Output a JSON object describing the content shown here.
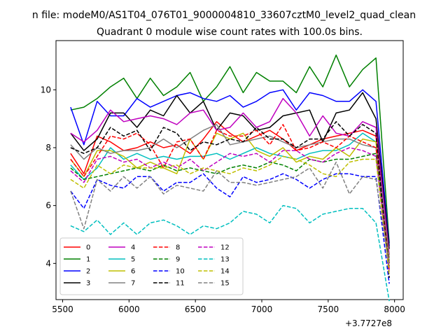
{
  "chart_data": {
    "type": "line",
    "suptitle": "n file: modeM0/AS1T04_076T01_9000004810_33607cztM0_level2_quad_clean",
    "title": "Quadrant 0 module wise count rates with 100.0s bins.",
    "xlabel": "",
    "ylabel": "",
    "x_offset_label": "+3.7727e8",
    "xlim": [
      5450,
      8065
    ],
    "ylim": [
      2.75,
      11.7
    ],
    "xticks": [
      5500,
      6000,
      6500,
      7000,
      7500,
      8000
    ],
    "xtick_labels": [
      "5500",
      "6000",
      "6500",
      "7000",
      "7500",
      "8000"
    ],
    "yticks": [
      4,
      6,
      8,
      10
    ],
    "ytick_labels": [
      "4",
      "6",
      "8",
      "10"
    ],
    "grid": false,
    "legend_position": "lower-left",
    "legend_columns": 4,
    "x": [
      5560,
      5660,
      5760,
      5860,
      5960,
      6060,
      6160,
      6260,
      6360,
      6460,
      6560,
      6660,
      6760,
      6860,
      6960,
      7060,
      7160,
      7260,
      7360,
      7460,
      7560,
      7660,
      7760,
      7860,
      7960
    ],
    "series": [
      {
        "name": "0",
        "color": "#ff0000",
        "dash": "solid",
        "values": [
          7.8,
          7.1,
          8.4,
          8.2,
          7.9,
          8.0,
          8.2,
          8.0,
          8.1,
          7.8,
          8.3,
          8.9,
          8.5,
          8.2,
          8.4,
          8.6,
          8.3,
          7.9,
          8.1,
          8.3,
          8.4,
          8.5,
          8.6,
          8.4,
          3.8
        ]
      },
      {
        "name": "1",
        "color": "#008000",
        "dash": "solid",
        "values": [
          9.3,
          9.4,
          9.7,
          10.1,
          10.4,
          9.7,
          10.4,
          9.8,
          10.1,
          10.6,
          9.6,
          10.1,
          10.8,
          9.9,
          10.6,
          10.3,
          10.3,
          9.9,
          10.8,
          10.1,
          11.2,
          10.1,
          10.7,
          11.1,
          4.7
        ]
      },
      {
        "name": "2",
        "color": "#0000ff",
        "dash": "solid",
        "values": [
          9.4,
          8.1,
          9.6,
          9.1,
          9.1,
          9.7,
          9.4,
          9.6,
          9.8,
          9.9,
          9.7,
          9.6,
          9.8,
          9.4,
          9.6,
          9.9,
          10.0,
          9.3,
          9.9,
          9.8,
          9.6,
          9.6,
          10.0,
          9.6,
          4.6
        ]
      },
      {
        "name": "3",
        "color": "#000000",
        "dash": "solid",
        "values": [
          8.5,
          7.9,
          8.3,
          9.2,
          9.2,
          8.7,
          9.3,
          9.1,
          9.8,
          9.2,
          9.6,
          8.6,
          9.2,
          9.1,
          8.6,
          8.7,
          9.1,
          9.2,
          9.3,
          8.2,
          9.2,
          9.3,
          9.9,
          9.0,
          4.5
        ]
      },
      {
        "name": "4",
        "color": "#bf00bf",
        "dash": "solid",
        "values": [
          8.5,
          8.2,
          8.6,
          9.3,
          8.9,
          9.0,
          9.1,
          9.0,
          8.8,
          9.2,
          9.3,
          8.6,
          8.7,
          9.2,
          8.7,
          8.9,
          9.7,
          9.2,
          8.4,
          9.1,
          8.5,
          8.4,
          8.9,
          8.7,
          4.3
        ]
      },
      {
        "name": "5",
        "color": "#00bfbf",
        "dash": "solid",
        "values": [
          7.4,
          6.9,
          7.3,
          8.0,
          7.6,
          7.8,
          7.6,
          7.7,
          7.6,
          7.7,
          7.7,
          7.8,
          7.6,
          7.8,
          8.0,
          7.8,
          7.7,
          7.6,
          7.8,
          7.9,
          7.9,
          8.1,
          8.5,
          8.2,
          4.1
        ]
      },
      {
        "name": "6",
        "color": "#bfbf00",
        "dash": "solid",
        "values": [
          7.6,
          7.0,
          7.9,
          7.9,
          7.7,
          7.3,
          7.5,
          7.3,
          7.1,
          8.3,
          7.6,
          8.5,
          8.3,
          8.5,
          7.9,
          7.7,
          8.0,
          7.5,
          7.7,
          7.6,
          8.0,
          7.7,
          8.3,
          8.2,
          4.0
        ]
      },
      {
        "name": "7",
        "color": "#808080",
        "dash": "solid",
        "values": [
          8.1,
          7.6,
          8.0,
          7.8,
          7.9,
          7.9,
          8.0,
          8.3,
          8.0,
          8.3,
          8.6,
          8.8,
          8.1,
          8.2,
          8.3,
          8.4,
          8.2,
          8.0,
          8.1,
          8.2,
          8.3,
          8.3,
          8.1,
          8.0,
          4.2
        ]
      },
      {
        "name": "8",
        "color": "#ff0000",
        "dash": "dashed",
        "values": [
          7.6,
          7.0,
          7.7,
          8.4,
          8.3,
          8.5,
          8.1,
          7.3,
          8.2,
          8.3,
          7.6,
          8.6,
          8.4,
          8.4,
          8.6,
          8.1,
          8.8,
          7.9,
          8.0,
          8.2,
          8.0,
          8.4,
          8.2,
          8.0,
          4.0
        ]
      },
      {
        "name": "9",
        "color": "#008000",
        "dash": "dashed",
        "values": [
          7.3,
          6.9,
          7.0,
          7.1,
          7.2,
          7.3,
          7.2,
          7.4,
          7.2,
          7.3,
          7.2,
          7.1,
          7.3,
          7.4,
          7.3,
          7.5,
          7.4,
          7.2,
          7.6,
          7.5,
          7.6,
          7.6,
          7.7,
          7.8,
          3.9
        ]
      },
      {
        "name": "10",
        "color": "#0000ff",
        "dash": "dashed",
        "values": [
          6.5,
          5.9,
          6.9,
          6.7,
          6.6,
          7.0,
          7.0,
          6.5,
          6.8,
          6.8,
          7.1,
          6.6,
          6.3,
          7.0,
          6.8,
          6.9,
          7.1,
          6.9,
          6.6,
          6.9,
          7.1,
          7.1,
          7.0,
          7.0,
          3.3
        ]
      },
      {
        "name": "11",
        "color": "#000000",
        "dash": "dashed",
        "values": [
          8.0,
          7.8,
          8.0,
          8.7,
          8.4,
          8.6,
          7.9,
          8.7,
          8.5,
          7.9,
          8.2,
          8.1,
          8.3,
          8.2,
          8.7,
          8.3,
          8.3,
          8.0,
          8.3,
          8.3,
          8.9,
          8.4,
          8.8,
          8.5,
          3.5
        ]
      },
      {
        "name": "12",
        "color": "#bf00bf",
        "dash": "dashed",
        "values": [
          7.2,
          6.8,
          7.6,
          7.7,
          7.5,
          7.6,
          7.3,
          7.5,
          7.3,
          7.6,
          7.2,
          7.5,
          7.8,
          7.7,
          7.8,
          7.5,
          7.9,
          7.9,
          7.6,
          7.5,
          7.8,
          8.0,
          7.9,
          7.7,
          3.7
        ]
      },
      {
        "name": "13",
        "color": "#00bfbf",
        "dash": "dashed",
        "values": [
          5.3,
          5.1,
          5.5,
          5.0,
          5.4,
          5.0,
          5.4,
          5.5,
          5.3,
          5.0,
          5.3,
          5.2,
          5.4,
          5.8,
          5.7,
          5.4,
          6.0,
          5.9,
          5.4,
          5.7,
          5.8,
          5.9,
          5.9,
          5.4,
          2.7
        ]
      },
      {
        "name": "14",
        "color": "#bfbf00",
        "dash": "dashed",
        "values": [
          6.9,
          6.6,
          7.4,
          7.1,
          7.4,
          7.3,
          7.3,
          7.3,
          7.4,
          7.1,
          7.3,
          7.2,
          7.1,
          7.3,
          7.2,
          7.4,
          7.7,
          7.6,
          7.4,
          7.1,
          7.0,
          7.5,
          7.6,
          7.6,
          3.6
        ]
      },
      {
        "name": "15",
        "color": "#808080",
        "dash": "dashed",
        "values": [
          6.5,
          5.2,
          6.9,
          6.5,
          7.0,
          6.6,
          7.0,
          6.4,
          6.7,
          6.6,
          6.5,
          7.2,
          6.8,
          6.8,
          6.7,
          6.8,
          6.9,
          7.0,
          7.3,
          6.6,
          7.5,
          6.4,
          7.0,
          6.9,
          3.9
        ]
      }
    ]
  }
}
